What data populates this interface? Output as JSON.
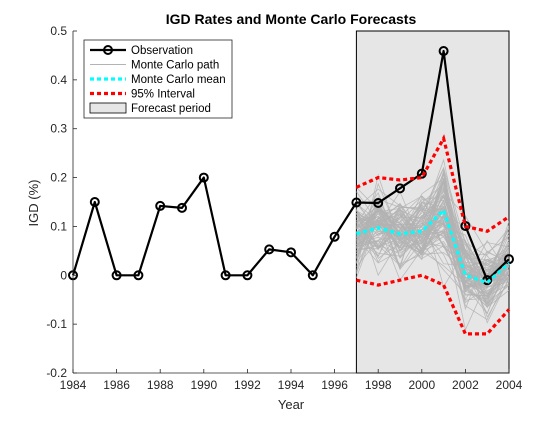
{
  "chart_data": {
    "type": "line",
    "title": "IGD Rates and Monte Carlo Forecasts",
    "xlabel": "Year",
    "ylabel": "IGD (%)",
    "xlim": [
      1984,
      2004
    ],
    "ylim": [
      -0.2,
      0.5
    ],
    "x_ticks": [
      "1984",
      "1986",
      "1988",
      "1990",
      "1992",
      "1994",
      "1996",
      "1998",
      "2000",
      "2002",
      "2004"
    ],
    "y_ticks": [
      "-0.2",
      "-0.1",
      "0",
      "0.1",
      "0.2",
      "0.3",
      "0.4",
      "0.5"
    ],
    "grid": false,
    "legend_position": "top-left",
    "forecast_period": [
      1997,
      2004
    ],
    "colors": {
      "observation": "#000000",
      "mc_path": "#b3b3b3",
      "mc_mean": "#00ffff",
      "interval": "#ff0000",
      "forecast_fill": "#e6e6e6",
      "forecast_edge": "#000000"
    },
    "legend": [
      {
        "key": "observation",
        "label": "Observation"
      },
      {
        "key": "mc_path",
        "label": "Monte Carlo path"
      },
      {
        "key": "mc_mean",
        "label": "Monte Carlo mean"
      },
      {
        "key": "interval",
        "label": "95% Interval"
      },
      {
        "key": "forecast",
        "label": "Forecast period"
      }
    ],
    "series": [
      {
        "name": "Observation",
        "x": [
          1984,
          1985,
          1986,
          1987,
          1988,
          1989,
          1990,
          1991,
          1992,
          1993,
          1994,
          1995,
          1996,
          1997,
          1998,
          1999,
          2000,
          2001,
          2002,
          2003,
          2004
        ],
        "y": [
          0.0,
          0.15,
          0.0,
          0.0,
          0.142,
          0.138,
          0.2,
          0.0,
          0.0,
          0.053,
          0.047,
          0.0,
          0.079,
          0.149,
          0.148,
          0.178,
          0.208,
          0.459,
          0.101,
          -0.01,
          0.033
        ]
      },
      {
        "name": "Monte Carlo mean",
        "x": [
          1997,
          1998,
          1999,
          2000,
          2001,
          2002,
          2003,
          2004
        ],
        "y": [
          0.085,
          0.097,
          0.085,
          0.09,
          0.133,
          0.0,
          -0.015,
          0.025
        ]
      },
      {
        "name": "95% Interval",
        "x": [
          1997,
          1998,
          1999,
          2000,
          2001,
          2002,
          2003,
          2004
        ],
        "y_upper": [
          0.18,
          0.2,
          0.195,
          0.2,
          0.28,
          0.1,
          0.09,
          0.12
        ],
        "y_lower": [
          -0.01,
          -0.02,
          -0.01,
          0.0,
          -0.02,
          -0.12,
          -0.12,
          -0.07
        ]
      }
    ]
  }
}
